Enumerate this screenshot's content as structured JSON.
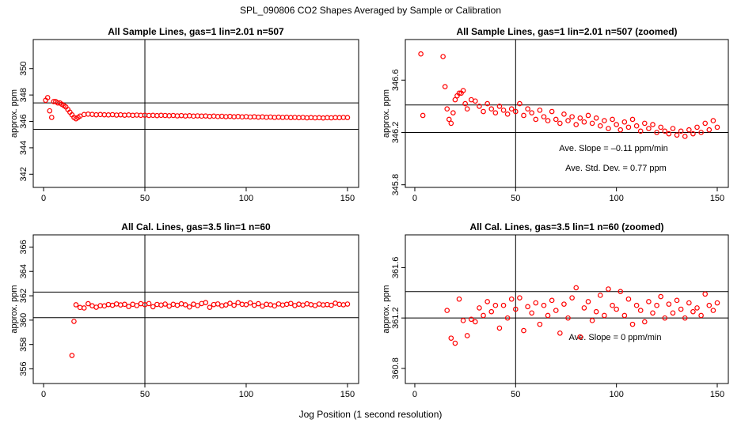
{
  "title": "SPL_090806  CO2 Shapes Averaged by Sample or Calibration",
  "xlabel": "Jog Position (1 second resolution)",
  "chart_data": [
    {
      "type": "scatter",
      "title": "All Sample Lines, gas=1 lin=2.01 n=507",
      "ylabel": "approx. ppm",
      "color": "#ff0000",
      "xlim": [
        -5.1,
        155.5
      ],
      "ylim": [
        341,
        352.2
      ],
      "xticks": [
        0,
        50,
        100,
        150
      ],
      "yticks": [
        342,
        344,
        346,
        348,
        350
      ],
      "vlines": [
        50
      ],
      "hlines": [
        347.4,
        345.4
      ],
      "x": [
        1,
        2,
        3,
        4,
        5,
        6,
        7,
        8,
        9,
        10,
        11,
        12,
        13,
        14,
        15,
        16,
        17,
        18,
        20,
        22,
        24,
        26,
        28,
        30,
        32,
        34,
        36,
        38,
        40,
        42,
        44,
        46,
        48,
        50,
        52,
        54,
        56,
        58,
        60,
        62,
        64,
        66,
        68,
        70,
        72,
        74,
        76,
        78,
        80,
        82,
        84,
        86,
        88,
        90,
        92,
        94,
        96,
        98,
        100,
        102,
        104,
        106,
        108,
        110,
        112,
        114,
        116,
        118,
        120,
        122,
        124,
        126,
        128,
        130,
        132,
        134,
        136,
        138,
        140,
        142,
        144,
        146,
        148,
        150
      ],
      "values": [
        347.6,
        347.8,
        346.8,
        346.3,
        347.5,
        347.5,
        347.4,
        347.4,
        347.3,
        347.2,
        347.1,
        346.9,
        346.7,
        346.5,
        346.3,
        346.2,
        346.3,
        346.4,
        346.52,
        346.55,
        346.53,
        346.5,
        346.52,
        346.5,
        346.49,
        346.51,
        346.48,
        346.5,
        346.47,
        346.49,
        346.46,
        346.48,
        346.46,
        346.47,
        346.45,
        346.46,
        346.44,
        346.46,
        346.45,
        346.43,
        346.45,
        346.42,
        346.44,
        346.41,
        346.43,
        346.4,
        346.42,
        346.4,
        346.41,
        346.38,
        346.4,
        346.37,
        346.39,
        346.36,
        346.38,
        346.35,
        346.37,
        346.34,
        346.36,
        346.33,
        346.35,
        346.32,
        346.34,
        346.31,
        346.33,
        346.3,
        346.32,
        346.3,
        346.31,
        346.29,
        346.3,
        346.28,
        346.3,
        346.27,
        346.29,
        346.27,
        346.28,
        346.26,
        346.28,
        346.27,
        346.29,
        346.28,
        346.3,
        346.29
      ]
    },
    {
      "type": "scatter",
      "title": "All Sample Lines, gas=1 lin=2.01 n=507 (zoomed)",
      "ylabel": "approx. ppm",
      "color": "#ff0000",
      "xlim": [
        -4.7,
        155.5
      ],
      "ylim": [
        345.78,
        346.91
      ],
      "xticks": [
        0,
        50,
        100,
        150
      ],
      "yticks": [
        345.8,
        346.2,
        346.6
      ],
      "vlines": [
        50
      ],
      "hlines": [
        346.41,
        346.2
      ],
      "annotations": [
        "Ave. Slope =  –0.11  ppm/min",
        "Ave. Std. Dev. =  0.77  ppm"
      ],
      "x": [
        3,
        4,
        14,
        15,
        16,
        17,
        18,
        19,
        20,
        21,
        22,
        23,
        24,
        25,
        26,
        28,
        30,
        32,
        34,
        36,
        38,
        40,
        42,
        44,
        46,
        48,
        50,
        52,
        54,
        56,
        58,
        60,
        62,
        64,
        66,
        68,
        70,
        72,
        74,
        76,
        78,
        80,
        82,
        84,
        86,
        88,
        90,
        92,
        94,
        96,
        98,
        100,
        102,
        104,
        106,
        108,
        110,
        112,
        114,
        116,
        118,
        120,
        122,
        124,
        126,
        128,
        130,
        132,
        134,
        136,
        138,
        140,
        142,
        144,
        146,
        148,
        150
      ],
      "values": [
        346.8,
        346.33,
        346.78,
        346.55,
        346.38,
        346.3,
        346.27,
        346.35,
        346.45,
        346.48,
        346.5,
        346.5,
        346.52,
        346.42,
        346.38,
        346.45,
        346.44,
        346.4,
        346.36,
        346.42,
        346.38,
        346.35,
        346.4,
        346.37,
        346.34,
        346.38,
        346.36,
        346.42,
        346.33,
        346.38,
        346.35,
        346.3,
        346.37,
        346.32,
        346.29,
        346.36,
        346.3,
        346.27,
        346.34,
        346.29,
        346.32,
        346.26,
        346.31,
        346.28,
        346.33,
        346.27,
        346.31,
        346.25,
        346.29,
        346.23,
        346.3,
        346.26,
        346.22,
        346.28,
        346.24,
        346.3,
        346.25,
        346.21,
        346.27,
        346.23,
        346.26,
        346.2,
        346.24,
        346.21,
        346.19,
        346.23,
        346.18,
        346.21,
        346.17,
        346.22,
        346.19,
        346.24,
        346.2,
        346.27,
        346.22,
        346.29,
        346.24
      ]
    },
    {
      "type": "scatter",
      "title": "All Cal. Lines, gas=3.5 lin=1 n=60",
      "ylabel": "approx. ppm",
      "color": "#ff0000",
      "xlim": [
        -5.1,
        155.5
      ],
      "ylim": [
        354.8,
        367.0
      ],
      "xticks": [
        0,
        50,
        100,
        150
      ],
      "yticks": [
        356,
        358,
        360,
        362,
        364,
        366
      ],
      "vlines": [
        50
      ],
      "hlines": [
        362.3,
        360.2
      ],
      "x": [
        14,
        15,
        16,
        18,
        20,
        22,
        24,
        26,
        28,
        30,
        32,
        34,
        36,
        38,
        40,
        42,
        44,
        46,
        48,
        50,
        52,
        54,
        56,
        58,
        60,
        62,
        64,
        66,
        68,
        70,
        72,
        74,
        76,
        78,
        80,
        82,
        84,
        86,
        88,
        90,
        92,
        94,
        96,
        98,
        100,
        102,
        104,
        106,
        108,
        110,
        112,
        114,
        116,
        118,
        120,
        122,
        124,
        126,
        128,
        130,
        132,
        134,
        136,
        138,
        140,
        142,
        144,
        146,
        148,
        150
      ],
      "values": [
        357.1,
        359.9,
        361.26,
        361.04,
        361.0,
        361.35,
        361.18,
        361.06,
        361.19,
        361.17,
        361.28,
        361.22,
        361.33,
        361.25,
        361.3,
        361.12,
        361.3,
        361.2,
        361.35,
        361.27,
        361.36,
        361.1,
        361.29,
        361.24,
        361.32,
        361.15,
        361.3,
        361.22,
        361.34,
        361.26,
        361.08,
        361.31,
        361.2,
        361.36,
        361.44,
        361.05,
        361.28,
        361.33,
        361.18,
        361.25,
        361.38,
        361.22,
        361.43,
        361.3,
        361.27,
        361.41,
        361.22,
        361.35,
        361.15,
        361.3,
        361.26,
        361.17,
        361.33,
        361.24,
        361.3,
        361.37,
        361.2,
        361.31,
        361.24,
        361.34,
        361.27,
        361.2,
        361.32,
        361.25,
        361.28,
        361.22,
        361.39,
        361.3,
        361.26,
        361.32
      ]
    },
    {
      "type": "scatter",
      "title": "All Cal. Lines, gas=3.5 lin=1 n=60 (zoomed)",
      "ylabel": "approx. ppm",
      "color": "#ff0000",
      "xlim": [
        -4.7,
        155.5
      ],
      "ylim": [
        360.68,
        361.86
      ],
      "xticks": [
        0,
        50,
        100,
        150
      ],
      "yticks": [
        360.8,
        361.2,
        361.6
      ],
      "vlines": [
        50
      ],
      "hlines": [
        361.41,
        361.2
      ],
      "annotations": [
        "Ave. Slope =  0  ppm/min"
      ],
      "x": [
        16,
        18,
        20,
        22,
        24,
        26,
        28,
        30,
        32,
        34,
        36,
        38,
        40,
        42,
        44,
        46,
        48,
        50,
        52,
        54,
        56,
        58,
        60,
        62,
        64,
        66,
        68,
        70,
        72,
        74,
        76,
        78,
        80,
        82,
        84,
        86,
        88,
        90,
        92,
        94,
        96,
        98,
        100,
        102,
        104,
        106,
        108,
        110,
        112,
        114,
        116,
        118,
        120,
        122,
        124,
        126,
        128,
        130,
        132,
        134,
        136,
        138,
        140,
        142,
        144,
        146,
        148,
        150
      ],
      "values": [
        361.26,
        361.04,
        361.0,
        361.35,
        361.18,
        361.06,
        361.19,
        361.17,
        361.28,
        361.22,
        361.33,
        361.25,
        361.3,
        361.12,
        361.3,
        361.2,
        361.35,
        361.27,
        361.36,
        361.1,
        361.29,
        361.24,
        361.32,
        361.15,
        361.3,
        361.22,
        361.34,
        361.26,
        361.08,
        361.31,
        361.2,
        361.36,
        361.44,
        361.05,
        361.28,
        361.33,
        361.18,
        361.25,
        361.38,
        361.22,
        361.43,
        361.3,
        361.27,
        361.41,
        361.22,
        361.35,
        361.15,
        361.3,
        361.26,
        361.17,
        361.33,
        361.24,
        361.3,
        361.37,
        361.2,
        361.31,
        361.24,
        361.34,
        361.27,
        361.2,
        361.32,
        361.25,
        361.28,
        361.22,
        361.39,
        361.3,
        361.26,
        361.32
      ]
    }
  ]
}
